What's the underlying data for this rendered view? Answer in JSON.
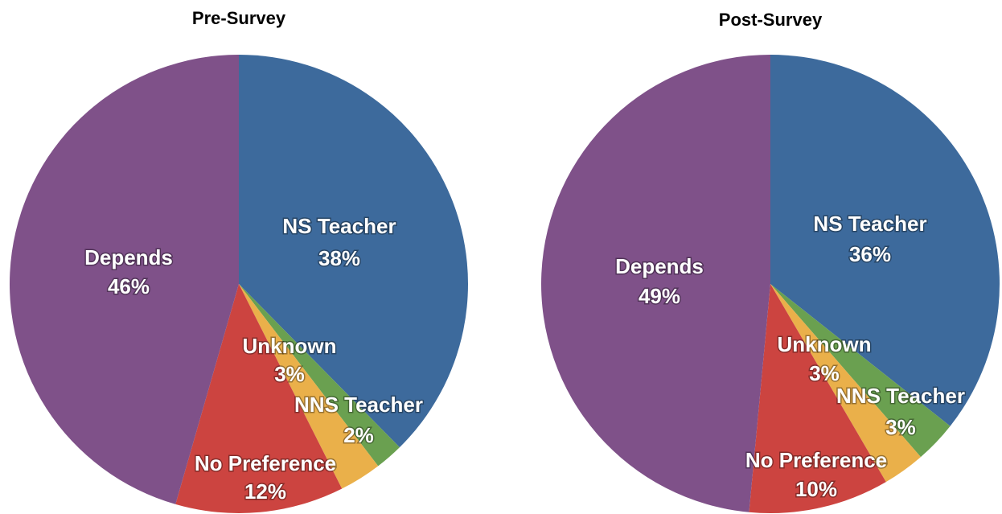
{
  "chart_data": [
    {
      "type": "pie",
      "title": "Pre-Survey",
      "categories": [
        "NS Teacher",
        "NNS Teacher",
        "Unknown",
        "No Preference",
        "Depends"
      ],
      "values": [
        38,
        2,
        3,
        12,
        46
      ],
      "value_labels": [
        "38%",
        "2%",
        "3%",
        "12%",
        "46%"
      ],
      "colors": [
        "#3d6a9c",
        "#6aa050",
        "#eab04a",
        "#cc4440",
        "#7f5189"
      ]
    },
    {
      "type": "pie",
      "title": "Post-Survey",
      "categories": [
        "NS Teacher",
        "NNS Teacher",
        "Unknown",
        "No Preference",
        "Depends"
      ],
      "values": [
        36,
        3,
        3,
        10,
        49
      ],
      "value_labels": [
        "36%",
        "3%",
        "3%",
        "10%",
        "49%"
      ],
      "colors": [
        "#3d6a9c",
        "#6aa050",
        "#eab04a",
        "#cc4440",
        "#7f5189"
      ]
    }
  ]
}
